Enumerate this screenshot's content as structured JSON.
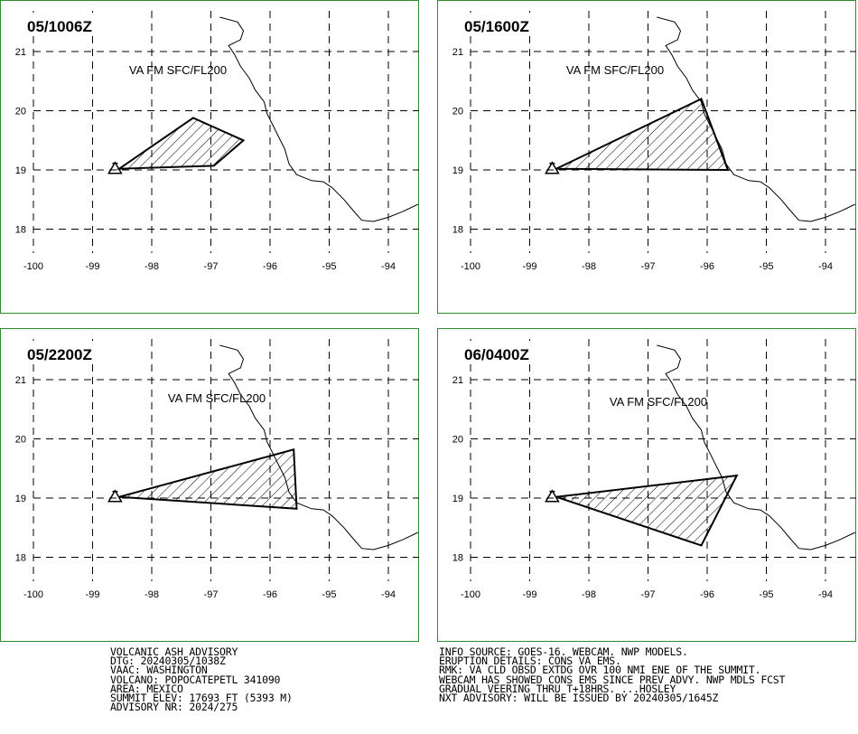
{
  "panels": [
    {
      "time_label": "05/1006Z",
      "va_label": "VA FM SFC/FL200",
      "polygon": [
        [
          -98.55,
          19.02
        ],
        [
          -97.3,
          19.88
        ],
        [
          -96.45,
          19.5
        ],
        [
          -96.95,
          19.07
        ],
        [
          -98.55,
          19.02
        ]
      ]
    },
    {
      "time_label": "05/1600Z",
      "va_label": "VA FM SFC/FL200",
      "polygon": [
        [
          -98.55,
          19.02
        ],
        [
          -96.1,
          20.2
        ],
        [
          -95.65,
          19.0
        ],
        [
          -98.55,
          19.02
        ]
      ]
    },
    {
      "time_label": "05/2200Z",
      "va_label": "VA FM SFC/FL200",
      "polygon": [
        [
          -98.55,
          19.02
        ],
        [
          -95.6,
          19.82
        ],
        [
          -95.55,
          18.82
        ],
        [
          -98.55,
          19.02
        ]
      ]
    },
    {
      "time_label": "06/0400Z",
      "va_label": "VA FM SFC/FL200",
      "polygon": [
        [
          -98.55,
          19.02
        ],
        [
          -95.5,
          19.38
        ],
        [
          -96.1,
          18.2
        ],
        [
          -98.55,
          19.02
        ]
      ]
    }
  ],
  "axes": {
    "x_ticks": [
      "-100",
      "-99",
      "-98",
      "-97",
      "-96",
      "-95",
      "-94"
    ],
    "x_values": [
      -100,
      -99,
      -98,
      -97,
      -96,
      -95,
      -94
    ],
    "y_ticks": [
      "21",
      "20",
      "19",
      "18"
    ],
    "y_values": [
      21,
      20,
      19,
      18
    ],
    "lon_range": [
      -100,
      -93.5
    ],
    "lat_range": [
      17.5,
      21.6
    ]
  },
  "volcano": {
    "lon": -98.62,
    "lat": 19.02,
    "symbol": "volcano-triangle"
  },
  "coastline": [
    [
      -96.85,
      21.58
    ],
    [
      -96.55,
      21.5
    ],
    [
      -96.45,
      21.35
    ],
    [
      -96.5,
      21.2
    ],
    [
      -96.7,
      21.1
    ],
    [
      -96.6,
      20.95
    ],
    [
      -96.5,
      20.75
    ],
    [
      -96.35,
      20.55
    ],
    [
      -96.25,
      20.35
    ],
    [
      -96.1,
      20.15
    ],
    [
      -96.05,
      19.95
    ],
    [
      -95.95,
      19.75
    ],
    [
      -95.85,
      19.55
    ],
    [
      -95.75,
      19.35
    ],
    [
      -95.68,
      19.1
    ],
    [
      -95.55,
      18.92
    ],
    [
      -95.3,
      18.82
    ],
    [
      -95.1,
      18.8
    ],
    [
      -94.95,
      18.7
    ],
    [
      -94.75,
      18.5
    ],
    [
      -94.6,
      18.32
    ],
    [
      -94.45,
      18.15
    ],
    [
      -94.25,
      18.13
    ],
    [
      -94.0,
      18.2
    ],
    [
      -93.75,
      18.3
    ],
    [
      -93.5,
      18.42
    ]
  ],
  "advisory_left": [
    "VOLCANIC ASH ADVISORY",
    "DTG: 20240305/1038Z",
    "VAAC: WASHINGTON",
    "VOLCANO: POPOCATEPETL 341090",
    "AREA: MEXICO",
    "SUMMIT ELEV: 17693 FT (5393 M)",
    "ADVISORY NR: 2024/275"
  ],
  "advisory_right": [
    "INFO SOURCE: GOES-16. WEBCAM. NWP MODELS.",
    "ERUPTION DETAILS: CONS VA EMS.",
    "RMK: VA CLD OBSD EXTDG OVR 100 NMI ENE OF THE SUMMIT.",
    "WEBCAM HAS SHOWED CONS EMS SINCE PREV ADVY. NWP MDLS FCST",
    "GRADUAL VEERING THRU T+18HRS. ...HOSLEY",
    "NXT ADVISORY: WILL BE ISSUED BY 20240305/1645Z"
  ],
  "colors": {
    "frame": "#2e8b2e",
    "ink": "#000000",
    "background": "#ffffff"
  }
}
